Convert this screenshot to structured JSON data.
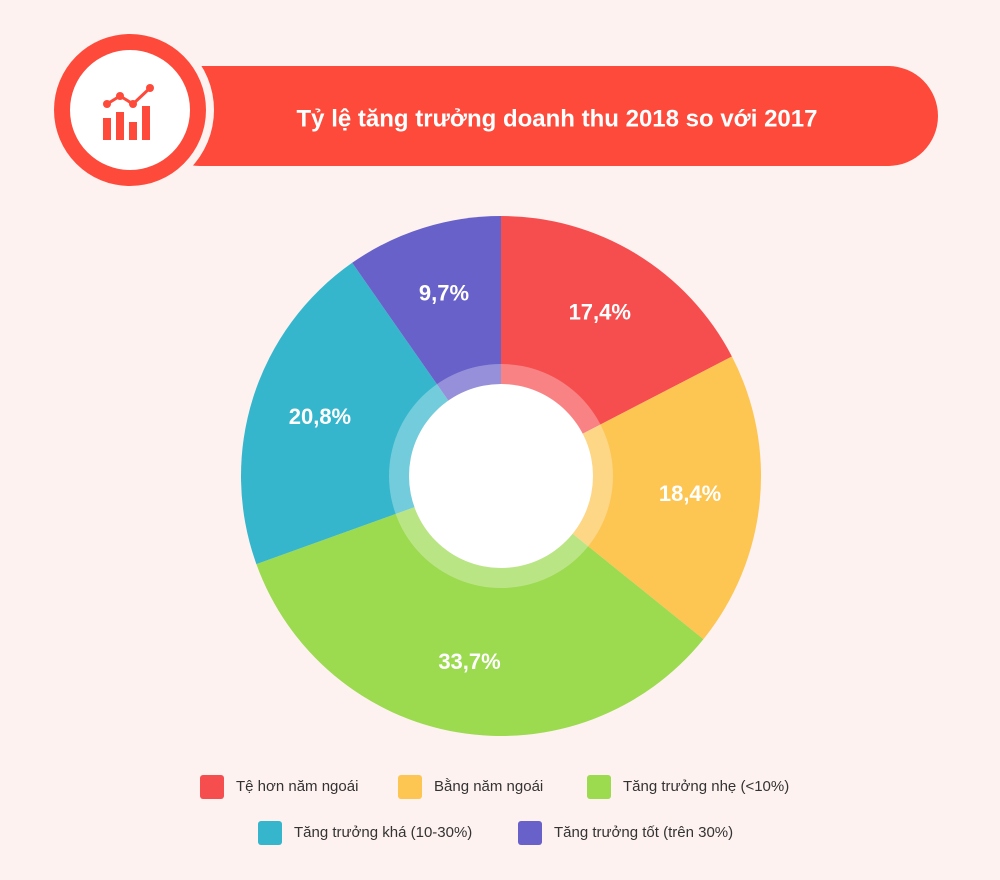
{
  "chart_data": {
    "type": "pie",
    "title": "Tỷ lệ tăng trưởng doanh thu 2018 so với 2017",
    "categories": [
      "Tệ hơn năm ngoái",
      "Bằng năm ngoái",
      "Tăng trưởng nhẹ (<10%)",
      "Tăng trưởng khá (10-30%)",
      "Tăng trưởng tốt (trên 30%)"
    ],
    "values": [
      17.4,
      18.4,
      33.7,
      20.8,
      9.7
    ],
    "value_labels": [
      "17,4%",
      "18,4%",
      "33,7%",
      "20,8%",
      "9,7%"
    ],
    "colors": [
      "#f64e4f",
      "#fdc552",
      "#9cda50",
      "#35b6cc",
      "#6761c9"
    ]
  }
}
